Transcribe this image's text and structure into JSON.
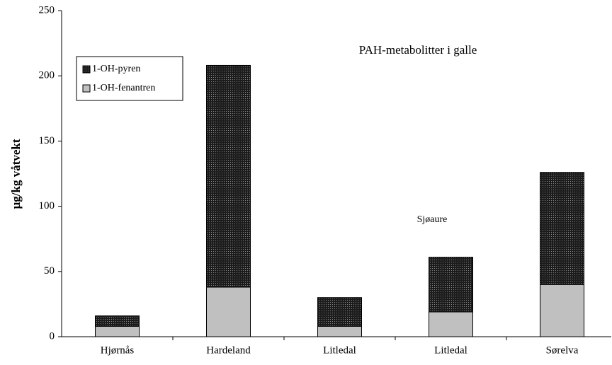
{
  "chart_data": {
    "type": "stacked_bar",
    "title": "PAH-metabolitter i galle",
    "y_label": "µg/kg våtvekt",
    "annotations": [
      "Sjøaure"
    ],
    "categories": [
      "Hjørnås",
      "Hardeland",
      "Litledal",
      "Litledal",
      "Sørelva"
    ],
    "series": [
      {
        "name": "1-OH-fenantren",
        "color": "#c0c0c0",
        "values": [
          8,
          38,
          8,
          19,
          40
        ]
      },
      {
        "name": "1-OH-pyren",
        "color": "#1c1c1c",
        "values": [
          8,
          170,
          22,
          42,
          86
        ]
      }
    ],
    "ylim": [
      0,
      250
    ],
    "yticks": [
      0,
      50,
      100,
      150,
      200,
      250
    ],
    "grid": false
  }
}
